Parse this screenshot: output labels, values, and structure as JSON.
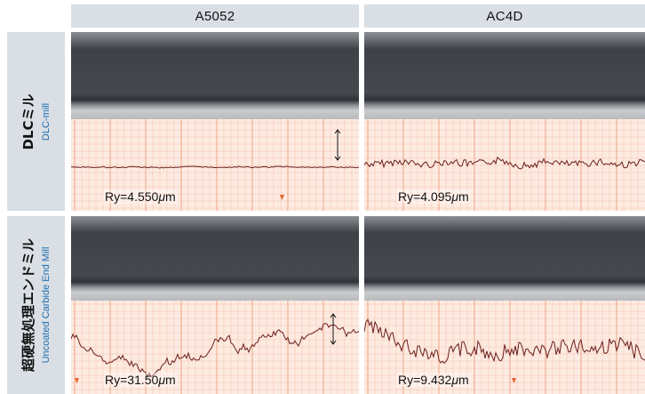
{
  "columns": [
    {
      "label": "A5052"
    },
    {
      "label": "AC4D"
    }
  ],
  "rows": [
    {
      "main": "DLCミル",
      "sub": "DLC-mill"
    },
    {
      "main": "超硬無処理エンドミル",
      "sub": "Uncoated Carbide End Mill"
    }
  ],
  "cells": [
    {
      "ry_prefix": "Ry=",
      "ry_value": "4.550",
      "ry_unit_mu": "μ",
      "ry_unit_m": "m"
    },
    {
      "ry_prefix": "Ry=",
      "ry_value": "4.095",
      "ry_unit_mu": "μ",
      "ry_unit_m": "m"
    },
    {
      "ry_prefix": "Ry=",
      "ry_value": "31.50",
      "ry_unit_mu": "μ",
      "ry_unit_m": "m"
    },
    {
      "ry_prefix": "Ry=",
      "ry_value": "9.432",
      "ry_unit_mu": "μ",
      "ry_unit_m": "m"
    }
  ],
  "colors": {
    "header_bg": "#d9dfe4",
    "sub_label": "#1f6fb2",
    "chart_paper": "#fdebe2",
    "grid": "#f0a07e",
    "trace": "#6b1e1e",
    "marker": "#e8622c",
    "metal_dark": "#3e4247",
    "metal_light": "#6c7075"
  },
  "scale_note": "20μm"
}
